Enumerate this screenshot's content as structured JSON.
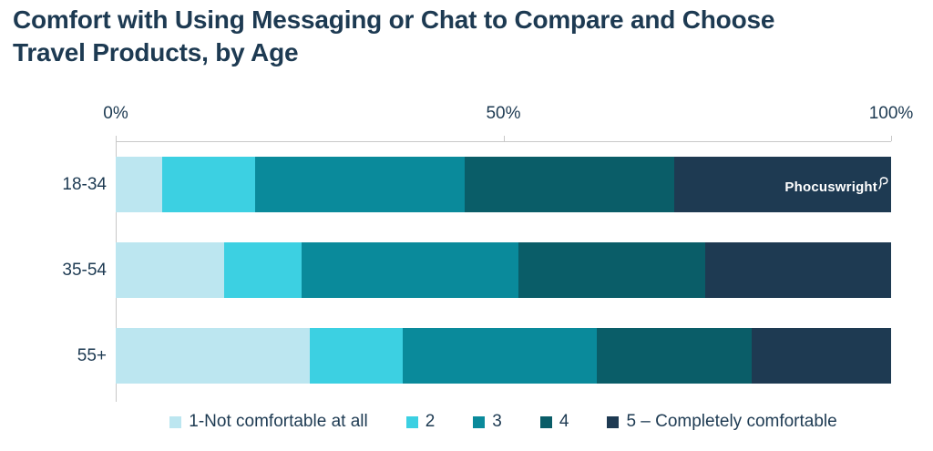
{
  "title": {
    "line1": "Comfort with Using Messaging or Chat to Compare and Choose",
    "line2": "Travel Products, by Age"
  },
  "logo": {
    "text": "Phocuswright"
  },
  "colors": {
    "title_text": "#1D3A52",
    "axis_line": "#C8C8C8",
    "background": "#FFFFFF",
    "logo_text": "#FFFFFF"
  },
  "chart_data": {
    "type": "bar",
    "orientation": "horizontal",
    "stacked": true,
    "unit": "%",
    "title": "Comfort with Using Messaging or Chat to Compare and Choose Travel Products, by Age",
    "categories": [
      "18-34",
      "35-54",
      "55+"
    ],
    "series": [
      {
        "name": "1-Not comfortable at all",
        "color": "#BCE6F0",
        "values": [
          6,
          14,
          25
        ]
      },
      {
        "name": "2",
        "color": "#3CD0E2",
        "values": [
          12,
          10,
          12
        ]
      },
      {
        "name": "3",
        "color": "#0A8A9B",
        "values": [
          27,
          28,
          25
        ]
      },
      {
        "name": "4",
        "color": "#0A5D68",
        "values": [
          27,
          24,
          20
        ]
      },
      {
        "name": "5 – Completely comfortable",
        "color": "#1E3A52",
        "values": [
          28,
          24,
          18
        ]
      }
    ],
    "x_axis": {
      "tick_labels": [
        "0%",
        "50%",
        "100%"
      ],
      "tick_positions": [
        0,
        50,
        100
      ],
      "range": [
        0,
        100
      ]
    },
    "ylabel": "",
    "xlabel": "",
    "grid": false,
    "legend_position": "bottom"
  }
}
